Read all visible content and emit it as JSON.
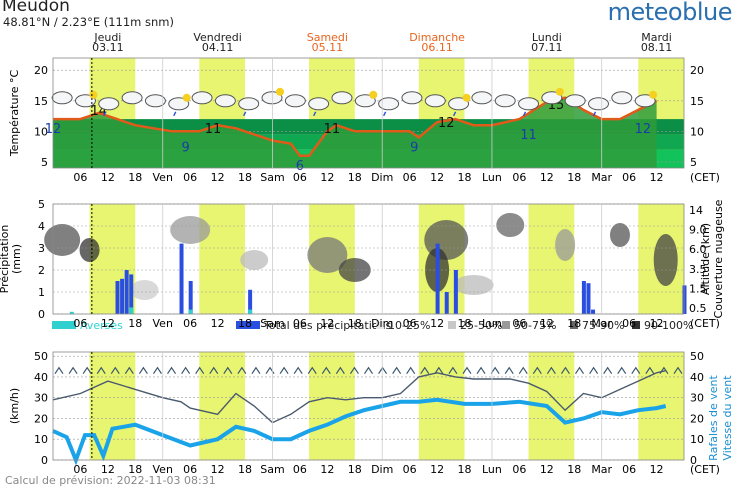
{
  "header": {
    "location": "Meudon",
    "coordinates": "48.81°N / 2.23°E (111m snm)",
    "brand": "meteoblue"
  },
  "footer": "Calcul de prévision: 2022-11-03 08:31",
  "timezone": "(CET)",
  "days": [
    {
      "name": "Jeudi",
      "date": "03.11",
      "weekend": false
    },
    {
      "name": "Vendredi",
      "date": "04.11",
      "weekend": false
    },
    {
      "name": "Samedi",
      "date": "05.11",
      "weekend": true
    },
    {
      "name": "Dimanche",
      "date": "06.11",
      "weekend": true
    },
    {
      "name": "Lundi",
      "date": "07.11",
      "weekend": false
    },
    {
      "name": "Mardi",
      "date": "08.11",
      "weekend": false
    }
  ],
  "hour_axis": [
    "06",
    "12",
    "18",
    "Ven",
    "06",
    "12",
    "18",
    "Sam",
    "06",
    "12",
    "18",
    "Dim",
    "06",
    "12",
    "18",
    "Lun",
    "06",
    "12",
    "18",
    "Mar",
    "06",
    "12"
  ],
  "colors": {
    "weekend": "#e8641e",
    "daylight": "#e8f570",
    "temp_line": "#e05a1a",
    "temp_fill": "#2f9c3b",
    "rain": "#2a4fe0",
    "shower": "#30d0d0",
    "wind": "#1aa3e8",
    "gust": "#4a5a6e",
    "brand": "#2a6fb0"
  },
  "chart_data": [
    {
      "type": "area",
      "title": "",
      "ylabel": "Température °C",
      "ylim": [
        4,
        22
      ],
      "yticks": [
        5,
        10,
        15,
        20
      ],
      "x_unit": "hours since 03.11 00:00 (CET)",
      "series": [
        {
          "name": "",
          "values": [
            [
              0,
              12
            ],
            [
              6,
              12
            ],
            [
              10,
              13
            ],
            [
              14,
              12
            ],
            [
              18,
              11
            ],
            [
              22,
              10.5
            ],
            [
              26,
              10
            ],
            [
              29,
              10
            ],
            [
              32,
              10
            ],
            [
              36,
              11
            ],
            [
              40,
              10.5
            ],
            [
              44,
              9.5
            ],
            [
              48,
              8.5
            ],
            [
              52,
              8
            ],
            [
              54,
              6
            ],
            [
              56,
              6
            ],
            [
              60,
              10
            ],
            [
              62,
              11
            ],
            [
              66,
              10
            ],
            [
              68,
              10
            ],
            [
              70,
              10
            ],
            [
              74,
              10
            ],
            [
              78,
              10
            ],
            [
              80,
              9
            ],
            [
              84,
              11.5
            ],
            [
              88,
              12
            ],
            [
              92,
              11
            ],
            [
              96,
              11
            ],
            [
              102,
              12
            ],
            [
              108,
              14.8
            ],
            [
              112,
              15.5
            ],
            [
              116,
              13.5
            ],
            [
              120,
              12
            ],
            [
              124,
              12
            ],
            [
              128,
              13.5
            ],
            [
              132,
              15
            ]
          ]
        }
      ],
      "labels": [
        {
          "x": 0,
          "y": 12,
          "text": "12",
          "kind": "min"
        },
        {
          "x": 10,
          "y": 14,
          "text": "14",
          "kind": "max"
        },
        {
          "x": 29,
          "y": 9,
          "text": "9",
          "kind": "min"
        },
        {
          "x": 35,
          "y": 11,
          "text": "11",
          "kind": "max"
        },
        {
          "x": 54,
          "y": 6,
          "text": "6",
          "kind": "min"
        },
        {
          "x": 61,
          "y": 11,
          "text": "11",
          "kind": "max"
        },
        {
          "x": 79,
          "y": 9,
          "text": "9",
          "kind": "min"
        },
        {
          "x": 86,
          "y": 12,
          "text": "12",
          "kind": "max"
        },
        {
          "x": 104,
          "y": 11,
          "text": "11",
          "kind": "min"
        },
        {
          "x": 110,
          "y": 15,
          "text": "15",
          "kind": "max"
        },
        {
          "x": 129,
          "y": 12,
          "text": "12",
          "kind": "min"
        }
      ]
    },
    {
      "type": "bar",
      "title": "",
      "ylabel": "Précipitation (mm)",
      "y2label": "Altitude (km) Couverture nuageuse",
      "ylim": [
        0,
        5
      ],
      "y2ticks": [
        "14",
        "9.0",
        "6.0",
        "3.5",
        "1.5",
        "0.5"
      ],
      "legend": [
        "Averses",
        "Total des précipitations",
        "10-25%",
        "25-50%",
        "50-75%",
        "75-90%",
        "90-100%"
      ],
      "precip_total": [
        [
          14,
          1.5
        ],
        [
          15,
          1.6
        ],
        [
          16,
          2.0
        ],
        [
          17,
          1.8
        ],
        [
          28,
          3.2
        ],
        [
          30,
          1.5
        ],
        [
          43,
          1.1
        ],
        [
          84,
          3.2
        ],
        [
          86,
          1.0
        ],
        [
          88,
          2.0
        ],
        [
          116,
          1.5
        ],
        [
          117,
          1.4
        ],
        [
          118,
          0.2
        ],
        [
          138,
          1.3
        ]
      ],
      "showers": [
        [
          4,
          0.1
        ],
        [
          17,
          0.3
        ],
        [
          30,
          0.2
        ],
        [
          43,
          0.2
        ]
      ]
    },
    {
      "type": "line",
      "title": "",
      "ylabel": "(km/h)",
      "y2label": "Rafales de vent Vitesse du vent",
      "ylim": [
        0,
        52
      ],
      "yticks": [
        0,
        10,
        20,
        30,
        40,
        50
      ],
      "series": [
        {
          "name": "Rafales de vent",
          "values": [
            [
              0,
              29
            ],
            [
              6,
              32
            ],
            [
              12,
              38
            ],
            [
              18,
              34
            ],
            [
              24,
              30
            ],
            [
              28,
              28
            ],
            [
              30,
              25
            ],
            [
              36,
              22
            ],
            [
              40,
              32
            ],
            [
              44,
              26
            ],
            [
              48,
              18
            ],
            [
              52,
              22
            ],
            [
              56,
              28
            ],
            [
              60,
              30
            ],
            [
              64,
              29
            ],
            [
              68,
              30
            ],
            [
              72,
              30
            ],
            [
              76,
              32
            ],
            [
              80,
              40
            ],
            [
              84,
              42
            ],
            [
              88,
              40
            ],
            [
              92,
              39
            ],
            [
              96,
              39
            ],
            [
              100,
              39
            ],
            [
              104,
              37
            ],
            [
              108,
              33
            ],
            [
              112,
              24
            ],
            [
              116,
              32
            ],
            [
              120,
              30
            ],
            [
              124,
              34
            ],
            [
              128,
              38
            ],
            [
              132,
              42
            ],
            [
              134,
              43
            ]
          ]
        },
        {
          "name": "Vitesse du vent",
          "values": [
            [
              0,
              14
            ],
            [
              3,
              11
            ],
            [
              5,
              0
            ],
            [
              7,
              12
            ],
            [
              9,
              12
            ],
            [
              11,
              2
            ],
            [
              13,
              15
            ],
            [
              18,
              17
            ],
            [
              24,
              12
            ],
            [
              30,
              7
            ],
            [
              36,
              10
            ],
            [
              40,
              16
            ],
            [
              44,
              14
            ],
            [
              48,
              10
            ],
            [
              52,
              10
            ],
            [
              56,
              14
            ],
            [
              60,
              17
            ],
            [
              64,
              21
            ],
            [
              68,
              24
            ],
            [
              72,
              26
            ],
            [
              76,
              28
            ],
            [
              80,
              28
            ],
            [
              84,
              29
            ],
            [
              90,
              27
            ],
            [
              96,
              27
            ],
            [
              102,
              28
            ],
            [
              108,
              26
            ],
            [
              112,
              18
            ],
            [
              116,
              20
            ],
            [
              120,
              23
            ],
            [
              124,
              22
            ],
            [
              128,
              24
            ],
            [
              132,
              25
            ],
            [
              134,
              26
            ]
          ]
        }
      ],
      "direction_arrows": 45
    }
  ]
}
